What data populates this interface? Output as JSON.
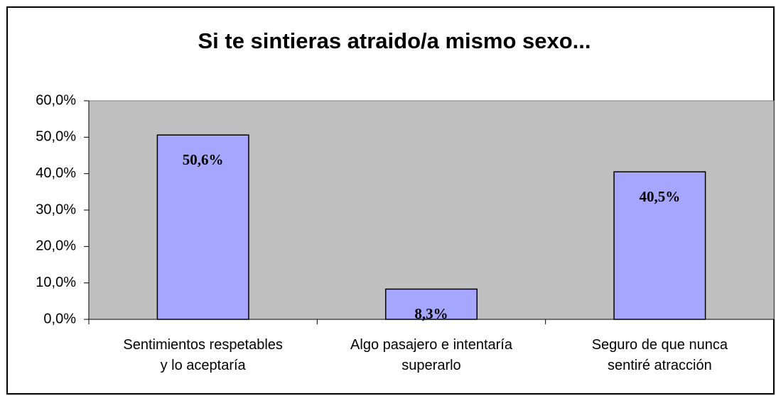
{
  "chart_data": {
    "type": "bar",
    "title": "Si te sintieras atraido/a mismo sexo...",
    "categories": [
      "Sentimientos respetables\ny lo aceptaría",
      "Algo pasajero e intentaría\nsuperarlo",
      "Seguro de que nunca\nsentiré atracción"
    ],
    "values": [
      50.6,
      8.3,
      40.5
    ],
    "value_labels": [
      "50,6%",
      "8,3%",
      "40,5%"
    ],
    "color": "#a6a6ff",
    "ylim": [
      0,
      60
    ],
    "yticks": [
      {
        "value": 0,
        "label": "0,0%"
      },
      {
        "value": 10,
        "label": "10,0%"
      },
      {
        "value": 20,
        "label": "20,0%"
      },
      {
        "value": 30,
        "label": "30,0%"
      },
      {
        "value": 40,
        "label": "40,0%"
      },
      {
        "value": 50,
        "label": "50,0%"
      },
      {
        "value": 60,
        "label": "60,0%"
      }
    ],
    "plot_background": "#c0c0c0"
  }
}
